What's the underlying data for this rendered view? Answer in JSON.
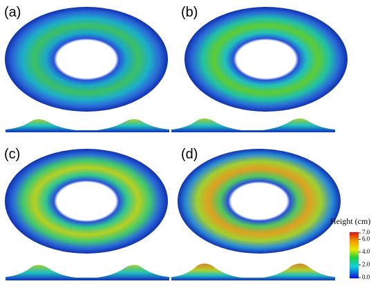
{
  "panels": [
    {
      "label": "(a)"
    },
    {
      "label": "(b)"
    },
    {
      "label": "(c)"
    },
    {
      "label": "(d)"
    }
  ],
  "colorbar": {
    "title": "Height (cm)",
    "ticks": [
      {
        "value": 7,
        "label": "7.0"
      },
      {
        "value": 6,
        "label": "6.0"
      },
      {
        "value": 4,
        "label": "4.0"
      },
      {
        "value": 2,
        "label": "2.0"
      },
      {
        "value": 0,
        "label": "0.0"
      }
    ]
  }
}
